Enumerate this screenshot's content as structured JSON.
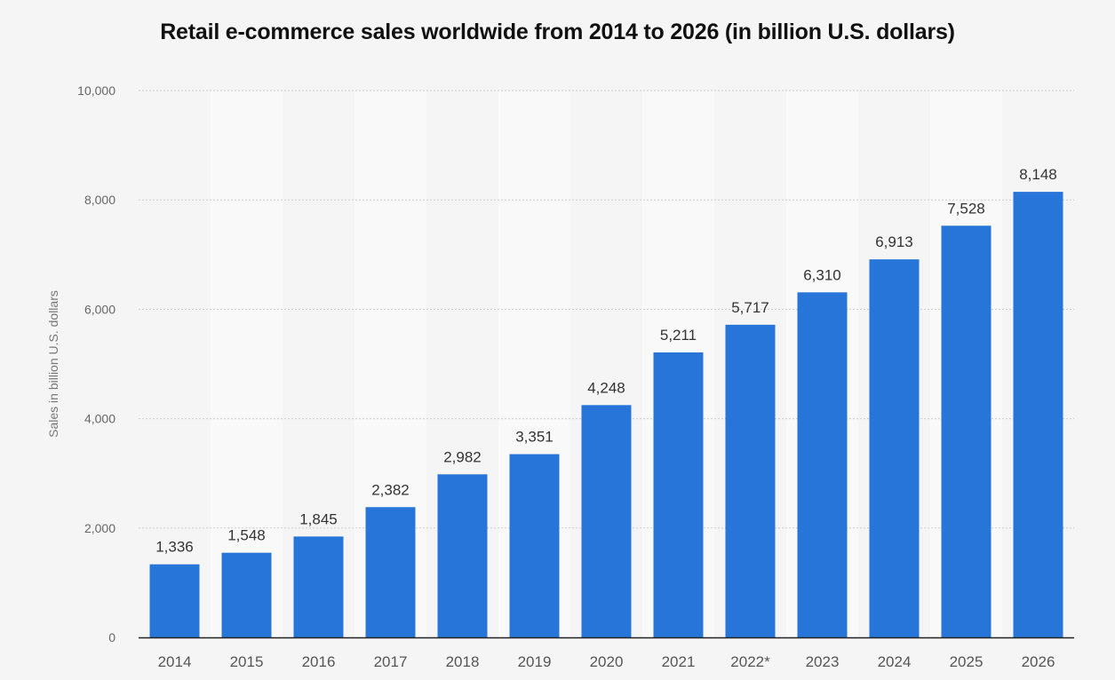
{
  "chart_data": {
    "type": "bar",
    "title": "Retail e-commerce sales worldwide from 2014 to 2026 (in billion U.S. dollars)",
    "xlabel": "",
    "ylabel": "Sales in billion U.S. dollars",
    "categories": [
      "2014",
      "2015",
      "2016",
      "2017",
      "2018",
      "2019",
      "2020",
      "2021",
      "2022*",
      "2023",
      "2024",
      "2025",
      "2026"
    ],
    "values": [
      1336,
      1548,
      1845,
      2382,
      2982,
      3351,
      4248,
      5211,
      5717,
      6310,
      6913,
      7528,
      8148
    ],
    "data_labels": [
      "1,336",
      "1,548",
      "1,845",
      "2,382",
      "2,982",
      "3,351",
      "4,248",
      "5,211",
      "5,717",
      "6,310",
      "6,913",
      "7,528",
      "8,148"
    ],
    "ylim": [
      0,
      10000
    ],
    "yticks": [
      0,
      2000,
      4000,
      6000,
      8000,
      10000
    ],
    "ytick_labels": [
      "0",
      "2,000",
      "4,000",
      "6,000",
      "8,000",
      "10,000"
    ],
    "grid": true,
    "legend": "none",
    "colors": {
      "bar": "#2775d8",
      "background": "#f5f5f5",
      "band": "#f9f9f9",
      "grid": "#cccccc",
      "axis": "#222222"
    }
  }
}
